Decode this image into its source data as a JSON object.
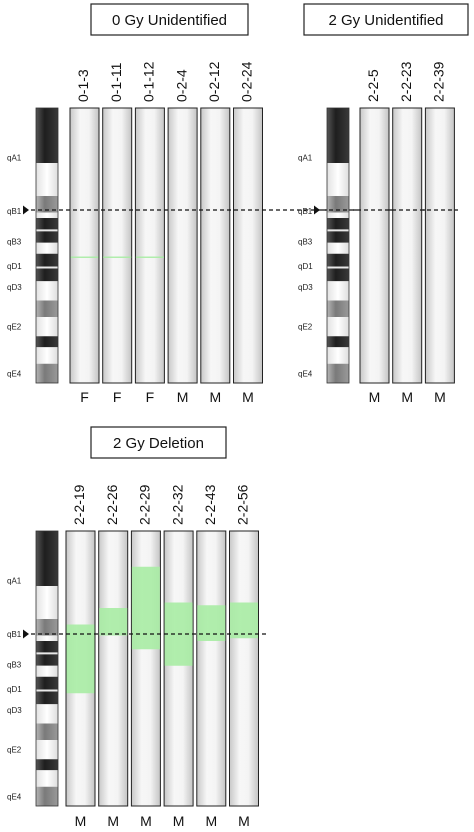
{
  "panels": [
    {
      "title": "0 Gy Unidentified",
      "columns": [
        {
          "id": "0-1-3",
          "sex": "F",
          "highlight": [
            0.54,
            0.545
          ]
        },
        {
          "id": "0-1-11",
          "sex": "F",
          "highlight": [
            0.54,
            0.545
          ]
        },
        {
          "id": "0-1-12",
          "sex": "F",
          "highlight": [
            0.54,
            0.545
          ]
        },
        {
          "id": "0-2-4",
          "sex": "M",
          "highlight": null
        },
        {
          "id": "0-2-12",
          "sex": "M",
          "highlight": null
        },
        {
          "id": "0-2-24",
          "sex": "M",
          "highlight": null
        }
      ]
    },
    {
      "title": "2 Gy Unidentified",
      "columns": [
        {
          "id": "2-2-5",
          "sex": "M",
          "highlight": null
        },
        {
          "id": "2-2-23",
          "sex": "M",
          "highlight": null
        },
        {
          "id": "2-2-39",
          "sex": "M",
          "highlight": null
        }
      ]
    },
    {
      "title": "2 Gy Deletion",
      "columns": [
        {
          "id": "2-2-19",
          "sex": "M",
          "highlight": [
            0.34,
            0.59
          ]
        },
        {
          "id": "2-2-26",
          "sex": "M",
          "highlight": [
            0.28,
            0.38
          ]
        },
        {
          "id": "2-2-29",
          "sex": "M",
          "highlight": [
            0.13,
            0.43
          ]
        },
        {
          "id": "2-2-32",
          "sex": "M",
          "highlight": [
            0.26,
            0.49
          ]
        },
        {
          "id": "2-2-43",
          "sex": "M",
          "highlight": [
            0.27,
            0.4
          ]
        },
        {
          "id": "2-2-56",
          "sex": "M",
          "highlight": [
            0.26,
            0.39
          ]
        }
      ]
    }
  ],
  "bands": [
    "qA1",
    "qB1",
    "qB3",
    "qD1",
    "qD3",
    "qE2",
    "qE4"
  ],
  "marker_band": "qB1",
  "colors": {
    "highlight": "#a8eca4",
    "band_dark": "#2a2a2a",
    "band_mid": "#8c8c8c",
    "frame": "#222222"
  }
}
